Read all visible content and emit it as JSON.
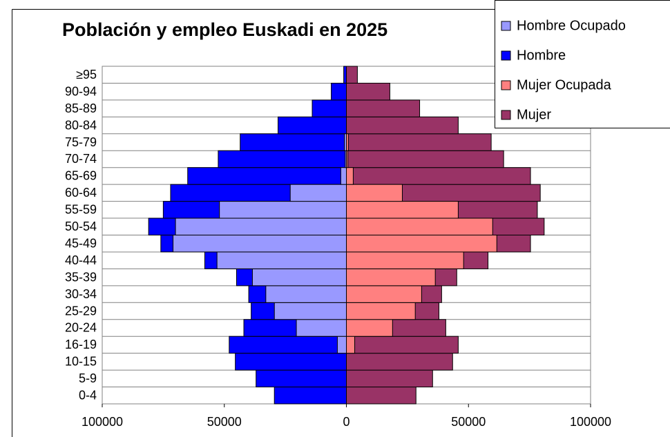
{
  "chart_data": {
    "type": "pyramid",
    "title": "Población y empleo Euskadi en 2025",
    "categories": [
      "0-4",
      "5-9",
      "10-15",
      "16-19",
      "20-24",
      "25-29",
      "30-34",
      "35-39",
      "40-44",
      "45-49",
      "50-54",
      "55-59",
      "60-64",
      "65-69",
      "70-74",
      "75-79",
      "80-84",
      "85-89",
      "90-94",
      "≥95"
    ],
    "series": [
      {
        "name": "Hombre Ocupado",
        "color": "#9999ff",
        "values": [
          0,
          0,
          0,
          -3700,
          -20500,
          -29500,
          -33000,
          -38500,
          -53000,
          -71000,
          -70000,
          -52000,
          -23000,
          -2300,
          -500,
          -800,
          0,
          0,
          0,
          0
        ]
      },
      {
        "name": "Hombre",
        "color": "#0000ff",
        "values": [
          -29500,
          -37000,
          -45500,
          -48000,
          -42000,
          -39000,
          -40000,
          -45000,
          -58000,
          -76000,
          -81000,
          -75000,
          -72000,
          -65000,
          -52500,
          -43500,
          -28000,
          -14000,
          -6200,
          -1100
        ]
      },
      {
        "name": "Mujer Ocupada",
        "color": "#ff8080",
        "values": [
          0,
          0,
          0,
          3400,
          18900,
          28200,
          30800,
          36400,
          48000,
          61600,
          59900,
          45800,
          22900,
          2800,
          600,
          800,
          0,
          0,
          0,
          0
        ]
      },
      {
        "name": "Mujer",
        "color": "#993366",
        "values": [
          28500,
          35300,
          43500,
          45800,
          40700,
          37900,
          39000,
          45200,
          58000,
          75400,
          81000,
          78200,
          79400,
          75400,
          64400,
          59300,
          45800,
          30000,
          17800,
          4500
        ]
      }
    ],
    "xlim": [
      -100000,
      100000
    ],
    "xticks": [
      {
        "value": -100000,
        "label": "100000"
      },
      {
        "value": -50000,
        "label": "50000"
      },
      0,
      50000,
      100000
    ],
    "grid": true,
    "legend": "top-right"
  }
}
